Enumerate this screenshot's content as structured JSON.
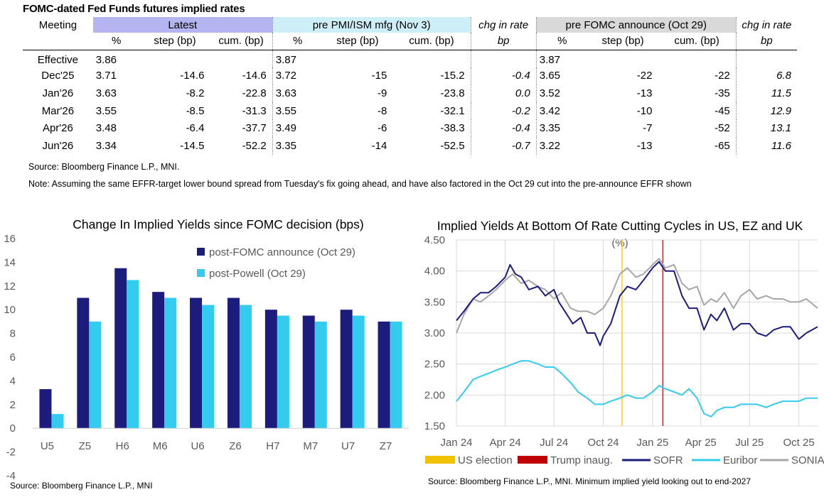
{
  "table": {
    "title": "FOMC-dated Fed Funds futures implied rates",
    "groups": {
      "meeting": "Meeting",
      "latest": "Latest",
      "pre_pmi": "pre PMI/ISM mfg (Nov 3)",
      "chg1": "chg in rate",
      "pre_fomc": "pre FOMC announce (Oct 29)",
      "chg2": "chg in rate"
    },
    "subheaders": [
      "%",
      "step (bp)",
      "cum. (bp)",
      "%",
      "step (bp)",
      "cum. (bp)",
      "bp",
      "%",
      "step (bp)",
      "cum. (bp)",
      "bp"
    ],
    "rows": [
      {
        "meeting": "Effective",
        "cells": [
          "3.86",
          "",
          "",
          "3.87",
          "",
          "",
          "",
          "3.87",
          "",
          "",
          ""
        ]
      },
      {
        "meeting": "Dec'25",
        "cells": [
          "3.71",
          "-14.6",
          "-14.6",
          "3.72",
          "-15",
          "-15.2",
          "-0.4",
          "3.65",
          "-22",
          "-22",
          "6.8"
        ]
      },
      {
        "meeting": "Jan'26",
        "cells": [
          "3.63",
          "-8.2",
          "-22.8",
          "3.63",
          "-9",
          "-23.8",
          "0.0",
          "3.52",
          "-13",
          "-35",
          "11.5"
        ]
      },
      {
        "meeting": "Mar'26",
        "cells": [
          "3.55",
          "-8.5",
          "-31.3",
          "3.55",
          "-8",
          "-32.1",
          "-0.2",
          "3.42",
          "-10",
          "-45",
          "12.9"
        ]
      },
      {
        "meeting": "Apr'26",
        "cells": [
          "3.48",
          "-6.4",
          "-37.7",
          "3.49",
          "-6",
          "-38.3",
          "-0.4",
          "3.35",
          "-7",
          "-52",
          "13.1"
        ]
      },
      {
        "meeting": "Jun'26",
        "cells": [
          "3.34",
          "-14.5",
          "-52.2",
          "3.35",
          "-14",
          "-52.5",
          "-0.7",
          "3.22",
          "-13",
          "-65",
          "11.6"
        ]
      }
    ],
    "source": "Source: Bloomberg Finance L.P., MNI.",
    "note": "Note: Assuming the same  EFFR-target lower bound spread from Tuesday's fix going ahead, and have also factored in the Oct 29 cut into the pre-announce EFFR shown"
  },
  "chart_data": [
    {
      "type": "bar",
      "title": "Change In Implied Yields since FOMC decision (bps)",
      "categories": [
        "U5",
        "Z5",
        "H6",
        "M6",
        "U6",
        "Z6",
        "H7",
        "M7",
        "U7",
        "Z7"
      ],
      "series": [
        {
          "name": "post-FOMC announce (Oct 29)",
          "color": "#1c1c7c",
          "values": [
            3.3,
            11.0,
            13.5,
            11.5,
            11.0,
            11.0,
            10.0,
            9.5,
            10.0,
            9.0
          ]
        },
        {
          "name": "post-Powell (Oct 29)",
          "color": "#33ccee",
          "values": [
            1.2,
            9.0,
            12.5,
            11.0,
            10.4,
            10.4,
            9.5,
            9.0,
            9.5,
            9.0
          ]
        }
      ],
      "yticks": [
        "16",
        "14",
        "12",
        "10",
        "8",
        "6",
        "4",
        "2",
        "0",
        "-2",
        "-4"
      ],
      "ylim": [
        -4,
        16
      ],
      "legend": "top-right",
      "grid": false,
      "source": "Source: Bloomberg Finance L.P., MNI"
    },
    {
      "type": "line",
      "title": "Implied Yields At Bottom Of Rate Cutting Cycles in US, EZ and UK",
      "ylabel": "(%)",
      "ylim": [
        1.5,
        4.5
      ],
      "yticks": [
        "4.50",
        "4.00",
        "3.50",
        "3.00",
        "2.50",
        "2.00",
        "1.50"
      ],
      "xticks": [
        "Jan 24",
        "Apr 24",
        "Jul 24",
        "Oct 24",
        "Jan 25",
        "Apr 25",
        "Jul 25",
        "Oct 25"
      ],
      "xlim": [
        "2024-01-01",
        "2025-11-05"
      ],
      "grid": true,
      "legend": "bottom",
      "events": [
        {
          "name": "US election",
          "date": "2024-11-05",
          "color": "#f2c200"
        },
        {
          "name": "Trump inaug.",
          "date": "2025-01-20",
          "color": "#c00000"
        }
      ],
      "series": [
        {
          "name": "SOFR",
          "color": "#1c1c7c",
          "dates": [
            "2024-01-01",
            "2024-01-15",
            "2024-02-01",
            "2024-02-15",
            "2024-03-01",
            "2024-03-15",
            "2024-04-01",
            "2024-04-10",
            "2024-04-20",
            "2024-05-01",
            "2024-05-15",
            "2024-06-01",
            "2024-06-15",
            "2024-07-01",
            "2024-07-10",
            "2024-07-25",
            "2024-08-05",
            "2024-08-20",
            "2024-09-01",
            "2024-09-15",
            "2024-09-25",
            "2024-10-01",
            "2024-10-15",
            "2024-11-01",
            "2024-11-15",
            "2024-12-01",
            "2024-12-15",
            "2025-01-01",
            "2025-01-13",
            "2025-01-25",
            "2025-02-10",
            "2025-02-25",
            "2025-03-10",
            "2025-03-25",
            "2025-04-07",
            "2025-04-20",
            "2025-05-01",
            "2025-05-15",
            "2025-06-01",
            "2025-06-15",
            "2025-07-01",
            "2025-07-15",
            "2025-08-01",
            "2025-08-15",
            "2025-09-01",
            "2025-09-15",
            "2025-10-01",
            "2025-10-15",
            "2025-11-05"
          ],
          "values": [
            3.2,
            3.35,
            3.55,
            3.65,
            3.65,
            3.75,
            3.9,
            4.1,
            3.95,
            3.9,
            3.7,
            3.75,
            3.6,
            3.7,
            3.5,
            3.3,
            3.15,
            3.25,
            3.0,
            3.0,
            2.8,
            2.95,
            3.15,
            3.6,
            3.75,
            3.7,
            3.85,
            4.05,
            4.15,
            4.0,
            4.0,
            3.6,
            3.4,
            3.4,
            3.05,
            3.3,
            3.2,
            3.4,
            3.05,
            3.15,
            3.15,
            3.0,
            2.95,
            3.05,
            3.1,
            3.1,
            2.9,
            3.0,
            3.1
          ]
        },
        {
          "name": "Euribor",
          "color": "#33ccee",
          "dates": [
            "2024-01-01",
            "2024-01-15",
            "2024-02-01",
            "2024-02-15",
            "2024-03-01",
            "2024-03-15",
            "2024-04-01",
            "2024-04-15",
            "2024-05-01",
            "2024-05-15",
            "2024-06-01",
            "2024-06-15",
            "2024-07-01",
            "2024-07-15",
            "2024-08-01",
            "2024-08-15",
            "2024-09-01",
            "2024-09-15",
            "2024-10-01",
            "2024-10-15",
            "2024-11-01",
            "2024-11-15",
            "2024-12-01",
            "2024-12-15",
            "2025-01-01",
            "2025-01-13",
            "2025-01-25",
            "2025-02-10",
            "2025-02-25",
            "2025-03-10",
            "2025-03-25",
            "2025-04-07",
            "2025-04-20",
            "2025-05-01",
            "2025-05-15",
            "2025-06-01",
            "2025-06-15",
            "2025-07-01",
            "2025-07-15",
            "2025-08-01",
            "2025-08-15",
            "2025-09-01",
            "2025-09-15",
            "2025-10-01",
            "2025-10-15",
            "2025-11-05"
          ],
          "values": [
            1.9,
            2.05,
            2.25,
            2.3,
            2.35,
            2.4,
            2.45,
            2.5,
            2.55,
            2.55,
            2.5,
            2.45,
            2.45,
            2.35,
            2.2,
            2.05,
            1.95,
            1.85,
            1.85,
            1.9,
            1.95,
            2.0,
            1.95,
            1.95,
            2.05,
            2.15,
            2.1,
            2.05,
            2.0,
            2.1,
            1.95,
            1.7,
            1.65,
            1.75,
            1.8,
            1.8,
            1.85,
            1.85,
            1.85,
            1.8,
            1.85,
            1.9,
            1.9,
            1.9,
            1.95,
            1.95
          ]
        },
        {
          "name": "SONIA",
          "color": "#a6a6a6",
          "dates": [
            "2024-01-01",
            "2024-01-15",
            "2024-02-01",
            "2024-02-15",
            "2024-03-01",
            "2024-03-15",
            "2024-04-01",
            "2024-04-15",
            "2024-05-01",
            "2024-05-15",
            "2024-06-01",
            "2024-06-15",
            "2024-07-01",
            "2024-07-15",
            "2024-08-01",
            "2024-08-15",
            "2024-09-01",
            "2024-09-15",
            "2024-10-01",
            "2024-10-15",
            "2024-11-01",
            "2024-11-15",
            "2024-12-01",
            "2024-12-15",
            "2025-01-01",
            "2025-01-13",
            "2025-01-25",
            "2025-02-10",
            "2025-02-25",
            "2025-03-10",
            "2025-03-25",
            "2025-04-07",
            "2025-04-20",
            "2025-05-01",
            "2025-05-15",
            "2025-06-01",
            "2025-06-15",
            "2025-07-01",
            "2025-07-15",
            "2025-08-01",
            "2025-08-15",
            "2025-09-01",
            "2025-09-15",
            "2025-10-01",
            "2025-10-15",
            "2025-11-05"
          ],
          "values": [
            3.0,
            3.3,
            3.55,
            3.5,
            3.6,
            3.7,
            3.85,
            3.95,
            3.8,
            3.85,
            3.75,
            3.7,
            3.55,
            3.65,
            3.4,
            3.35,
            3.35,
            3.3,
            3.4,
            3.6,
            3.95,
            4.05,
            3.9,
            3.95,
            4.1,
            4.2,
            4.05,
            4.1,
            3.8,
            3.7,
            3.75,
            3.45,
            3.55,
            3.5,
            3.65,
            3.4,
            3.6,
            3.7,
            3.55,
            3.6,
            3.55,
            3.55,
            3.5,
            3.5,
            3.55,
            3.4
          ]
        }
      ],
      "source": "Source: Bloomberg Finance L.P., MNI. Minimum implied yield looking out to end-2027"
    }
  ]
}
